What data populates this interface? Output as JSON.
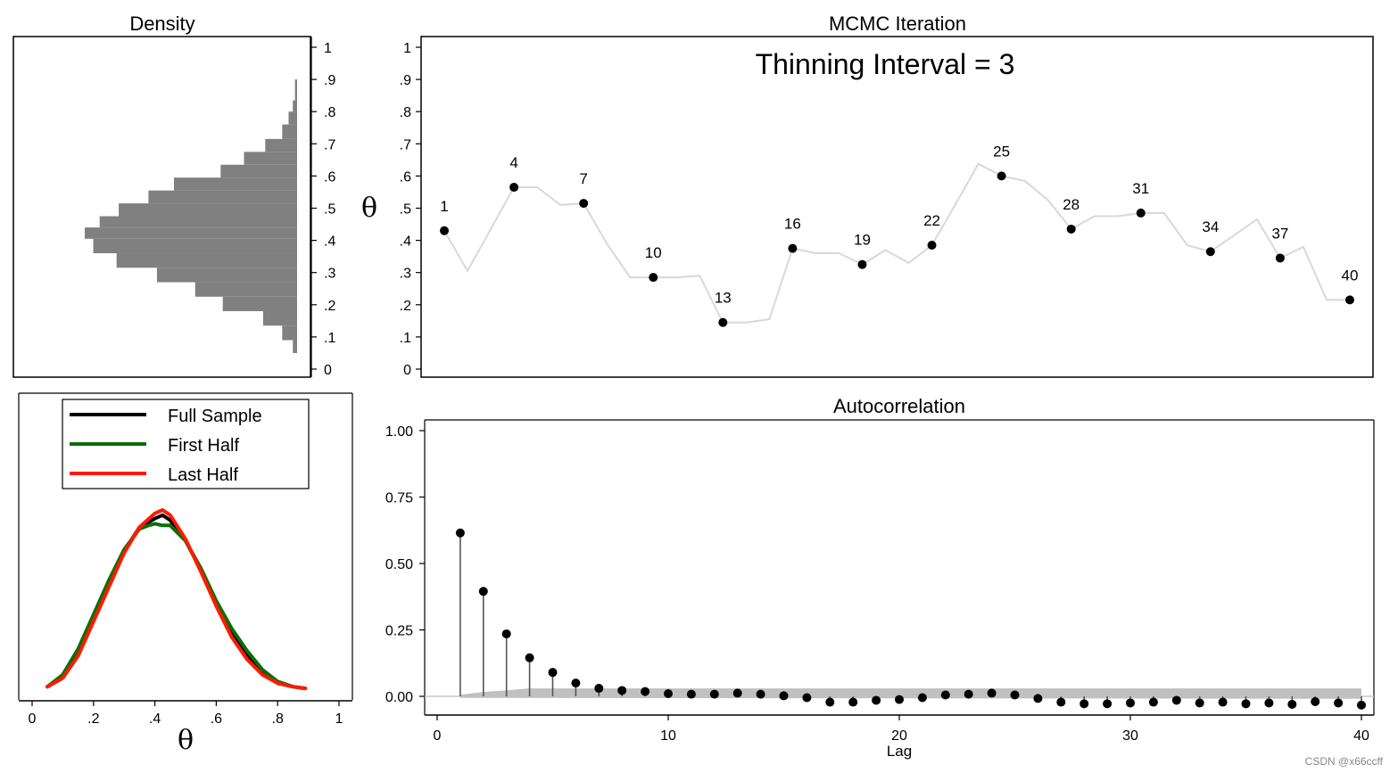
{
  "watermark": "CSDN @x66ccff",
  "chart_data": [
    {
      "id": "density",
      "type": "bar",
      "orientation": "horizontal",
      "title": "Density",
      "xlabel": "",
      "ylabel": "",
      "ylim": [
        0,
        1
      ],
      "ticks": [
        {
          "v": 0,
          "label": "0"
        },
        {
          "v": 0.1,
          "label": ".1"
        },
        {
          "v": 0.2,
          "label": ".2"
        },
        {
          "v": 0.3,
          "label": ".3"
        },
        {
          "v": 0.4,
          "label": ".4"
        },
        {
          "v": 0.5,
          "label": ".5"
        },
        {
          "v": 0.6,
          "label": ".6"
        },
        {
          "v": 0.7,
          "label": ".7"
        },
        {
          "v": 0.8,
          "label": ".8"
        },
        {
          "v": 0.9,
          "label": ".9"
        },
        {
          "v": 1,
          "label": "1"
        }
      ],
      "bins": [
        {
          "lo": 0.05,
          "hi": 0.09,
          "h": 0.02
        },
        {
          "lo": 0.09,
          "hi": 0.135,
          "h": 0.07
        },
        {
          "lo": 0.135,
          "hi": 0.18,
          "h": 0.16
        },
        {
          "lo": 0.18,
          "hi": 0.225,
          "h": 0.35
        },
        {
          "lo": 0.225,
          "hi": 0.27,
          "h": 0.48
        },
        {
          "lo": 0.27,
          "hi": 0.315,
          "h": 0.66
        },
        {
          "lo": 0.315,
          "hi": 0.36,
          "h": 0.85
        },
        {
          "lo": 0.36,
          "hi": 0.405,
          "h": 0.96
        },
        {
          "lo": 0.405,
          "hi": 0.44,
          "h": 1.0
        },
        {
          "lo": 0.44,
          "hi": 0.475,
          "h": 0.93
        },
        {
          "lo": 0.475,
          "hi": 0.515,
          "h": 0.84
        },
        {
          "lo": 0.515,
          "hi": 0.555,
          "h": 0.7
        },
        {
          "lo": 0.555,
          "hi": 0.595,
          "h": 0.58
        },
        {
          "lo": 0.595,
          "hi": 0.635,
          "h": 0.36
        },
        {
          "lo": 0.635,
          "hi": 0.675,
          "h": 0.25
        },
        {
          "lo": 0.675,
          "hi": 0.715,
          "h": 0.15
        },
        {
          "lo": 0.715,
          "hi": 0.76,
          "h": 0.07
        },
        {
          "lo": 0.76,
          "hi": 0.8,
          "h": 0.04
        },
        {
          "lo": 0.8,
          "hi": 0.835,
          "h": 0.02
        },
        {
          "lo": 0.835,
          "hi": 0.9,
          "h": 0.01
        }
      ]
    },
    {
      "id": "trace",
      "type": "line",
      "title": "MCMC Iteration",
      "annotation": "Thinning Interval = 3",
      "ylabel": "θ",
      "xlim": [
        0,
        41
      ],
      "ylim": [
        0,
        1
      ],
      "ticks": [
        {
          "v": 0,
          "label": "0"
        },
        {
          "v": 0.1,
          "label": ".1"
        },
        {
          "v": 0.2,
          "label": ".2"
        },
        {
          "v": 0.3,
          "label": ".3"
        },
        {
          "v": 0.4,
          "label": ".4"
        },
        {
          "v": 0.5,
          "label": ".5"
        },
        {
          "v": 0.6,
          "label": ".6"
        },
        {
          "v": 0.7,
          "label": ".7"
        },
        {
          "v": 0.8,
          "label": ".8"
        },
        {
          "v": 0.9,
          "label": ".9"
        },
        {
          "v": 1,
          "label": "1"
        }
      ],
      "x": [
        1,
        2,
        3,
        4,
        5,
        6,
        7,
        8,
        9,
        10,
        11,
        12,
        13,
        14,
        15,
        16,
        17,
        18,
        19,
        20,
        21,
        22,
        23,
        24,
        25,
        26,
        27,
        28,
        29,
        30,
        31,
        32,
        33,
        34,
        35,
        36,
        37,
        38,
        39,
        40
      ],
      "y": [
        0.43,
        0.305,
        0.435,
        0.565,
        0.565,
        0.51,
        0.515,
        0.39,
        0.285,
        0.285,
        0.285,
        0.29,
        0.145,
        0.145,
        0.155,
        0.375,
        0.36,
        0.36,
        0.325,
        0.37,
        0.33,
        0.385,
        0.51,
        0.638,
        0.6,
        0.585,
        0.525,
        0.435,
        0.475,
        0.475,
        0.485,
        0.485,
        0.385,
        0.365,
        0.415,
        0.465,
        0.345,
        0.38,
        0.215,
        0.215
      ],
      "highlighted": [
        {
          "x": 1,
          "label": "1"
        },
        {
          "x": 4,
          "label": "4"
        },
        {
          "x": 7,
          "label": "7"
        },
        {
          "x": 10,
          "label": "10"
        },
        {
          "x": 13,
          "label": "13"
        },
        {
          "x": 16,
          "label": "16"
        },
        {
          "x": 19,
          "label": "19"
        },
        {
          "x": 22,
          "label": "22"
        },
        {
          "x": 25,
          "label": "25"
        },
        {
          "x": 28,
          "label": "28"
        },
        {
          "x": 31,
          "label": "31"
        },
        {
          "x": 34,
          "label": "34"
        },
        {
          "x": 37,
          "label": "37"
        },
        {
          "x": 40,
          "label": "40"
        }
      ]
    },
    {
      "id": "kdensity",
      "type": "line",
      "xlabel": "θ",
      "xlim": [
        -0.05,
        1.05
      ],
      "ylim": [
        0,
        1.25
      ],
      "xticks": [
        {
          "v": 0,
          "label": "0"
        },
        {
          "v": 0.2,
          "label": ".2"
        },
        {
          "v": 0.4,
          "label": ".4"
        },
        {
          "v": 0.6,
          "label": ".6"
        },
        {
          "v": 0.8,
          "label": ".8"
        },
        {
          "v": 1,
          "label": "1"
        }
      ],
      "legend": [
        {
          "name": "Full Sample",
          "color": "#000000"
        },
        {
          "name": "First Half",
          "color": "#0a6e0a"
        },
        {
          "name": "Last Half",
          "color": "#ff1a00"
        }
      ],
      "series": [
        {
          "name": "Full Sample",
          "color": "#000000",
          "x": [
            0.05,
            0.1,
            0.15,
            0.2,
            0.25,
            0.3,
            0.35,
            0.4,
            0.425,
            0.45,
            0.5,
            0.55,
            0.6,
            0.65,
            0.7,
            0.75,
            0.8,
            0.85,
            0.89
          ],
          "y": [
            0.02,
            0.08,
            0.22,
            0.42,
            0.62,
            0.81,
            0.95,
            1.0,
            1.02,
            0.99,
            0.87,
            0.7,
            0.5,
            0.33,
            0.2,
            0.1,
            0.04,
            0.02,
            0.01
          ]
        },
        {
          "name": "First Half",
          "color": "#0a6e0a",
          "x": [
            0.05,
            0.1,
            0.15,
            0.2,
            0.25,
            0.3,
            0.35,
            0.38,
            0.4,
            0.425,
            0.45,
            0.5,
            0.55,
            0.6,
            0.65,
            0.7,
            0.75,
            0.8,
            0.85,
            0.89
          ],
          "y": [
            0.02,
            0.09,
            0.24,
            0.44,
            0.64,
            0.82,
            0.94,
            0.96,
            0.97,
            0.96,
            0.96,
            0.87,
            0.71,
            0.52,
            0.36,
            0.23,
            0.12,
            0.05,
            0.02,
            0.01
          ]
        },
        {
          "name": "Last Half",
          "color": "#ff1a00",
          "x": [
            0.05,
            0.1,
            0.15,
            0.2,
            0.25,
            0.3,
            0.35,
            0.4,
            0.425,
            0.45,
            0.5,
            0.55,
            0.6,
            0.65,
            0.7,
            0.75,
            0.8,
            0.85,
            0.89
          ],
          "y": [
            0.02,
            0.07,
            0.2,
            0.4,
            0.6,
            0.8,
            0.95,
            1.03,
            1.05,
            1.02,
            0.88,
            0.69,
            0.49,
            0.31,
            0.18,
            0.09,
            0.04,
            0.02,
            0.01
          ]
        }
      ]
    },
    {
      "id": "autocorrelation",
      "type": "scatter",
      "title": "Autocorrelation",
      "xlabel": "Lag",
      "ylabel": "",
      "xlim": [
        -0.5,
        40.5
      ],
      "ylim": [
        -0.06,
        1.04
      ],
      "xticks": [
        {
          "v": 0,
          "label": "0"
        },
        {
          "v": 10,
          "label": "10"
        },
        {
          "v": 20,
          "label": "20"
        },
        {
          "v": 30,
          "label": "30"
        },
        {
          "v": 40,
          "label": "40"
        }
      ],
      "yticks": [
        {
          "v": 0,
          "label": "0.00"
        },
        {
          "v": 0.25,
          "label": "0.25"
        },
        {
          "v": 0.5,
          "label": "0.50"
        },
        {
          "v": 0.75,
          "label": "0.75"
        },
        {
          "v": 1,
          "label": "1.00"
        }
      ],
      "confidence_band": 0.03,
      "lags": [
        1,
        2,
        3,
        4,
        5,
        6,
        7,
        8,
        9,
        10,
        11,
        12,
        13,
        14,
        15,
        16,
        17,
        18,
        19,
        20,
        21,
        22,
        23,
        24,
        25,
        26,
        27,
        28,
        29,
        30,
        31,
        32,
        33,
        34,
        35,
        36,
        37,
        38,
        39,
        40
      ],
      "values": [
        0.615,
        0.395,
        0.235,
        0.145,
        0.09,
        0.05,
        0.03,
        0.022,
        0.018,
        0.01,
        0.008,
        0.008,
        0.012,
        0.008,
        0.002,
        -0.005,
        -0.022,
        -0.022,
        -0.015,
        -0.012,
        -0.005,
        0.005,
        0.008,
        0.012,
        0.005,
        -0.008,
        -0.022,
        -0.028,
        -0.028,
        -0.025,
        -0.022,
        -0.015,
        -0.025,
        -0.022,
        -0.028,
        -0.025,
        -0.03,
        -0.02,
        -0.025,
        -0.033
      ]
    }
  ]
}
